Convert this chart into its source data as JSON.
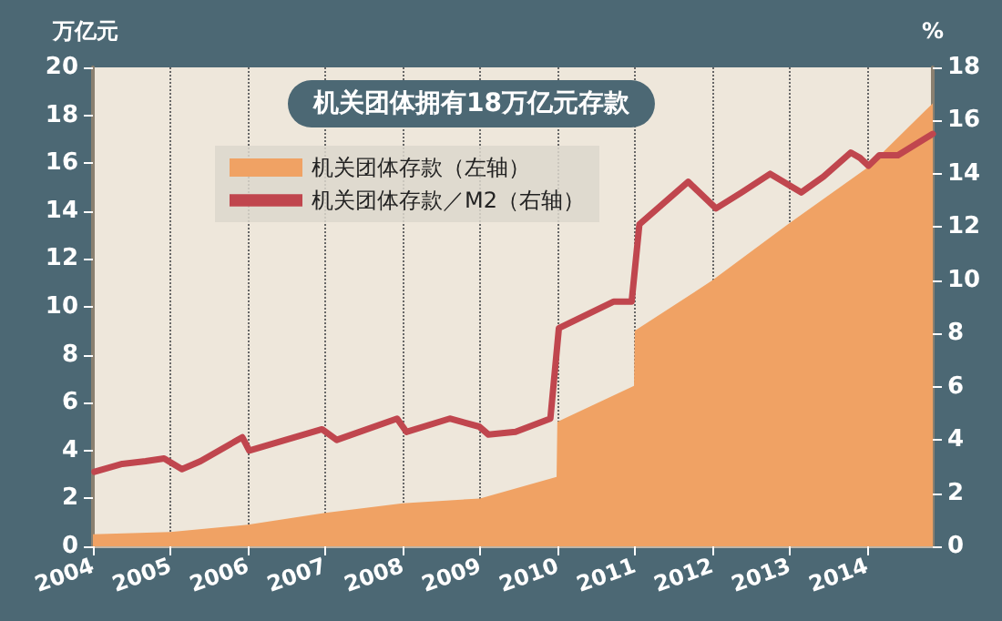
{
  "chart_data": {
    "type": "area",
    "title": "机关团体拥有18万亿元存款",
    "ylabel": "万亿元",
    "y2label": "%",
    "series": [
      {
        "name": "机关团体存款（左轴）",
        "color": "#f0a264",
        "x": [
          2004,
          2005,
          2006,
          2007,
          2008,
          2009,
          2009.99,
          2010,
          2010.99,
          2011,
          2012,
          2013,
          2014,
          2014.85
        ],
        "values": [
          0.5,
          0.6,
          0.9,
          1.4,
          1.8,
          2.0,
          2.9,
          5.2,
          6.7,
          9.0,
          11.1,
          13.5,
          15.8,
          18.5
        ]
      },
      {
        "name": "机关团体存款／M2（右轴）",
        "type": "line",
        "axis": "y2",
        "color": "#c0464e",
        "x": [
          2004.02,
          2004.38,
          2004.68,
          2004.92,
          2005.15,
          2005.39,
          2005.93,
          2006.02,
          2006.96,
          2007.15,
          2007.93,
          2008.05,
          2008.61,
          2008.99,
          2009.11,
          2009.46,
          2009.91,
          2010.02,
          2010.73,
          2010.96,
          2011.06,
          2011.69,
          2012.05,
          2012.38,
          2012.75,
          2013.15,
          2013.44,
          2013.79,
          2013.91,
          2014.02,
          2014.16,
          2014.4,
          2014.85
        ],
        "values": [
          2.8,
          3.1,
          3.2,
          3.3,
          2.9,
          3.2,
          4.1,
          3.6,
          4.4,
          4.0,
          4.8,
          4.3,
          4.8,
          4.5,
          4.2,
          4.3,
          4.8,
          8.2,
          9.2,
          9.2,
          12.1,
          13.7,
          12.7,
          13.3,
          14.0,
          13.3,
          13.9,
          14.8,
          14.6,
          14.3,
          14.7,
          14.7,
          15.5
        ]
      }
    ],
    "xlim": [
      2004,
      2014.85
    ],
    "xticks": [
      2004,
      2005,
      2006,
      2007,
      2008,
      2009,
      2010,
      2011,
      2012,
      2013,
      2014
    ],
    "ylim": [
      0,
      20
    ],
    "yticks": [
      0,
      2,
      4,
      6,
      8,
      10,
      12,
      14,
      16,
      18,
      20
    ],
    "y2lim": [
      0,
      18
    ],
    "y2ticks": [
      0,
      2,
      4,
      6,
      8,
      10,
      12,
      14,
      16,
      18
    ],
    "grid": "x",
    "legend": "top left",
    "marker": "none",
    "line_style": "solid"
  }
}
